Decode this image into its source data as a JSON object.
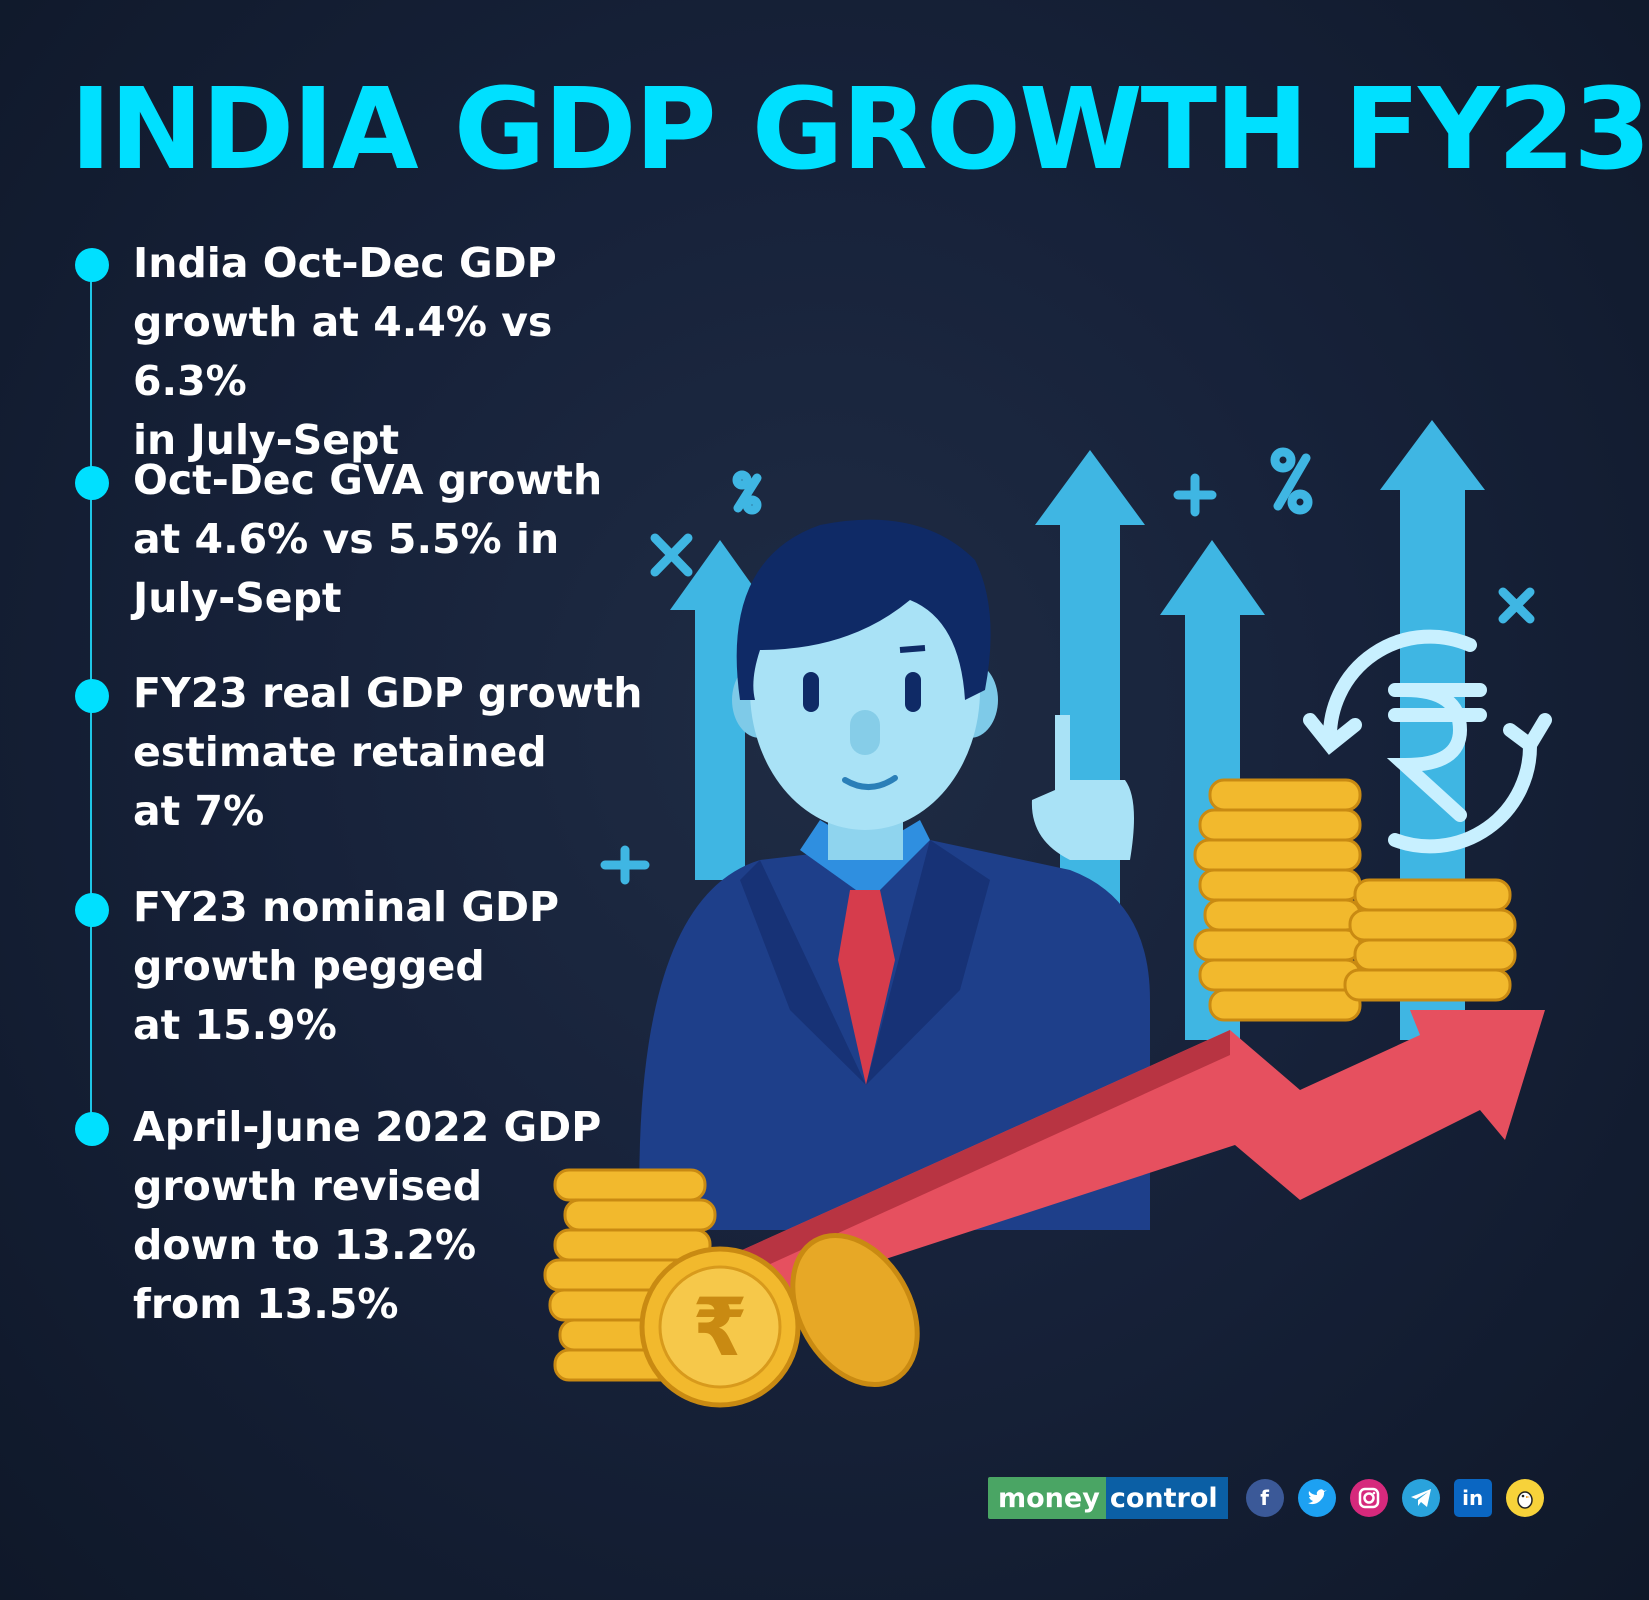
{
  "title": "INDIA GDP GROWTH FY23",
  "points": [
    "India Oct-Dec GDP\ngrowth at 4.4% vs 6.3%\nin July-Sept",
    "Oct-Dec GVA growth\nat 4.6% vs 5.5% in\nJuly-Sept",
    "FY23 real GDP growth\nestimate retained\nat 7%",
    "FY23 nominal GDP\ngrowth pegged\nat 15.9%",
    "April-June 2022 GDP\ngrowth revised\ndown to 13.2%\nfrom 13.5%"
  ],
  "footer": {
    "brand_part1": "money",
    "brand_part2": "control",
    "social_icons": [
      "facebook-icon",
      "twitter-icon",
      "instagram-icon",
      "telegram-icon",
      "linkedin-icon",
      "koo-icon"
    ]
  },
  "colors": {
    "accent": "#00e0ff",
    "background": "#17223a",
    "arrow_blue": "#3fb6e3",
    "growth_arrow": "#e6505f",
    "coin": "#f2b92d"
  }
}
